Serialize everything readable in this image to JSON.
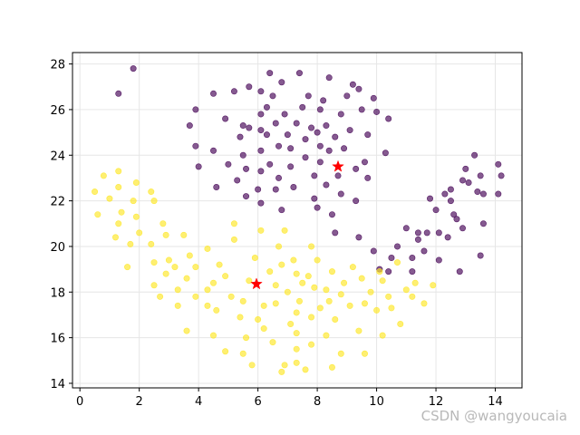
{
  "watermark": "CSDN @wangyoucaia",
  "chart_data": {
    "type": "scatter",
    "title": "",
    "xlabel": "",
    "ylabel": "",
    "xlim": [
      -0.25,
      14.9
    ],
    "ylim": [
      13.8,
      28.5
    ],
    "xticks": [
      0,
      2,
      4,
      6,
      8,
      10,
      12,
      14
    ],
    "yticks": [
      14,
      16,
      18,
      20,
      22,
      24,
      26,
      28
    ],
    "grid": true,
    "colors": {
      "purple": "#440154",
      "yellow": "#fde725",
      "centroid": "#ff0000"
    },
    "series": [
      {
        "color": "#440154",
        "points": [
          [
            1.3,
            26.7
          ],
          [
            1.8,
            27.8
          ],
          [
            3.7,
            25.3
          ],
          [
            3.9,
            26.0
          ],
          [
            3.9,
            24.4
          ],
          [
            4.0,
            23.5
          ],
          [
            4.5,
            26.7
          ],
          [
            4.5,
            24.2
          ],
          [
            4.6,
            22.6
          ],
          [
            4.9,
            25.6
          ],
          [
            5.0,
            23.6
          ],
          [
            5.2,
            26.8
          ],
          [
            5.3,
            22.9
          ],
          [
            5.4,
            24.8
          ],
          [
            5.5,
            25.3
          ],
          [
            5.6,
            23.4
          ],
          [
            5.6,
            22.2
          ],
          [
            5.5,
            24.0
          ],
          [
            5.7,
            27.0
          ],
          [
            5.7,
            25.2
          ],
          [
            6.1,
            26.8
          ],
          [
            6.1,
            25.8
          ],
          [
            6.1,
            25.1
          ],
          [
            6.1,
            24.2
          ],
          [
            6.1,
            23.3
          ],
          [
            6.0,
            22.5
          ],
          [
            6.1,
            21.9
          ],
          [
            6.3,
            26.1
          ],
          [
            6.3,
            24.9
          ],
          [
            6.4,
            23.6
          ],
          [
            6.4,
            27.6
          ],
          [
            6.5,
            26.6
          ],
          [
            6.6,
            25.4
          ],
          [
            6.7,
            24.4
          ],
          [
            6.7,
            23.0
          ],
          [
            6.8,
            21.6
          ],
          [
            6.6,
            22.5
          ],
          [
            6.8,
            27.2
          ],
          [
            6.9,
            25.8
          ],
          [
            7.0,
            24.9
          ],
          [
            7.1,
            24.3
          ],
          [
            7.1,
            23.5
          ],
          [
            7.2,
            22.6
          ],
          [
            7.3,
            25.4
          ],
          [
            7.4,
            27.6
          ],
          [
            7.5,
            26.1
          ],
          [
            7.6,
            24.7
          ],
          [
            7.6,
            23.9
          ],
          [
            7.8,
            25.2
          ],
          [
            7.7,
            26.6
          ],
          [
            7.9,
            22.1
          ],
          [
            8.0,
            25.0
          ],
          [
            7.9,
            23.1
          ],
          [
            8.0,
            21.7
          ],
          [
            8.1,
            26.0
          ],
          [
            8.1,
            24.4
          ],
          [
            8.1,
            23.7
          ],
          [
            8.2,
            26.4
          ],
          [
            8.3,
            25.3
          ],
          [
            8.3,
            22.7
          ],
          [
            8.4,
            27.4
          ],
          [
            8.4,
            24.2
          ],
          [
            8.5,
            21.4
          ],
          [
            8.6,
            24.8
          ],
          [
            8.7,
            23.1
          ],
          [
            8.8,
            25.8
          ],
          [
            8.8,
            22.3
          ],
          [
            8.9,
            24.3
          ],
          [
            9.0,
            26.6
          ],
          [
            9.1,
            25.1
          ],
          [
            9.2,
            27.1
          ],
          [
            9.3,
            23.4
          ],
          [
            9.3,
            22.0
          ],
          [
            9.4,
            26.9
          ],
          [
            9.5,
            26.0
          ],
          [
            9.6,
            23.7
          ],
          [
            9.7,
            24.9
          ],
          [
            9.7,
            23.0
          ],
          [
            9.9,
            26.5
          ],
          [
            10.0,
            25.9
          ],
          [
            10.3,
            24.1
          ],
          [
            10.4,
            25.6
          ],
          [
            8.6,
            20.6
          ],
          [
            9.4,
            20.4
          ],
          [
            9.9,
            19.8
          ],
          [
            10.1,
            19.0
          ],
          [
            10.5,
            19.5
          ],
          [
            10.4,
            18.9
          ],
          [
            10.7,
            20.0
          ],
          [
            11.0,
            20.8
          ],
          [
            11.2,
            19.5
          ],
          [
            11.2,
            18.9
          ],
          [
            11.4,
            20.3
          ],
          [
            11.6,
            19.8
          ],
          [
            11.7,
            20.6
          ],
          [
            11.8,
            22.1
          ],
          [
            12.0,
            21.6
          ],
          [
            12.1,
            20.6
          ],
          [
            12.1,
            19.4
          ],
          [
            12.3,
            22.3
          ],
          [
            12.4,
            20.4
          ],
          [
            12.5,
            22.0
          ],
          [
            12.6,
            21.4
          ],
          [
            12.5,
            22.5
          ],
          [
            12.7,
            21.2
          ],
          [
            12.8,
            18.9
          ],
          [
            12.9,
            22.9
          ],
          [
            12.9,
            20.8
          ],
          [
            13.0,
            23.4
          ],
          [
            13.1,
            22.8
          ],
          [
            13.3,
            24.0
          ],
          [
            13.4,
            22.4
          ],
          [
            13.5,
            23.1
          ],
          [
            13.6,
            21.0
          ],
          [
            13.6,
            22.3
          ],
          [
            13.5,
            19.6
          ],
          [
            14.1,
            23.6
          ],
          [
            14.1,
            22.3
          ],
          [
            14.2,
            23.1
          ],
          [
            11.4,
            20.6
          ]
        ]
      },
      {
        "color": "#fde725",
        "points": [
          [
            0.5,
            22.4
          ],
          [
            0.6,
            21.4
          ],
          [
            0.8,
            23.1
          ],
          [
            1.0,
            22.1
          ],
          [
            1.2,
            20.4
          ],
          [
            1.3,
            23.3
          ],
          [
            1.3,
            22.6
          ],
          [
            1.3,
            21.0
          ],
          [
            1.4,
            21.5
          ],
          [
            1.6,
            19.1
          ],
          [
            1.7,
            20.1
          ],
          [
            1.8,
            22.0
          ],
          [
            1.9,
            22.8
          ],
          [
            1.9,
            21.3
          ],
          [
            2.0,
            20.6
          ],
          [
            2.4,
            22.4
          ],
          [
            2.5,
            22.0
          ],
          [
            2.4,
            20.1
          ],
          [
            2.5,
            19.3
          ],
          [
            2.5,
            18.3
          ],
          [
            2.7,
            17.8
          ],
          [
            2.8,
            21.0
          ],
          [
            2.9,
            18.8
          ],
          [
            2.9,
            20.5
          ],
          [
            3.0,
            19.4
          ],
          [
            3.2,
            19.1
          ],
          [
            3.3,
            18.1
          ],
          [
            3.3,
            17.4
          ],
          [
            3.5,
            20.5
          ],
          [
            3.6,
            16.3
          ],
          [
            3.6,
            18.6
          ],
          [
            3.7,
            19.6
          ],
          [
            3.9,
            19.1
          ],
          [
            3.9,
            17.8
          ],
          [
            4.3,
            18.1
          ],
          [
            4.3,
            17.4
          ],
          [
            4.3,
            19.9
          ],
          [
            4.5,
            16.1
          ],
          [
            4.5,
            18.4
          ],
          [
            4.7,
            19.2
          ],
          [
            4.9,
            18.7
          ],
          [
            5.1,
            17.8
          ],
          [
            5.2,
            21.0
          ],
          [
            5.2,
            20.3
          ],
          [
            5.4,
            16.9
          ],
          [
            5.5,
            17.6
          ],
          [
            5.5,
            15.3
          ],
          [
            5.6,
            16.0
          ],
          [
            5.7,
            18.5
          ],
          [
            5.8,
            14.8
          ],
          [
            5.9,
            19.5
          ],
          [
            6.0,
            16.8
          ],
          [
            6.1,
            20.7
          ],
          [
            6.2,
            17.4
          ],
          [
            6.2,
            16.4
          ],
          [
            6.4,
            18.9
          ],
          [
            6.5,
            15.8
          ],
          [
            6.6,
            18.3
          ],
          [
            6.6,
            17.5
          ],
          [
            6.7,
            20.0
          ],
          [
            6.8,
            14.5
          ],
          [
            6.8,
            19.2
          ],
          [
            6.9,
            20.7
          ],
          [
            7.0,
            18.0
          ],
          [
            7.1,
            16.6
          ],
          [
            7.2,
            19.4
          ],
          [
            7.3,
            18.8
          ],
          [
            7.3,
            17.1
          ],
          [
            7.3,
            16.2
          ],
          [
            7.3,
            15.5
          ],
          [
            7.3,
            14.9
          ],
          [
            7.4,
            17.6
          ],
          [
            7.5,
            18.4
          ],
          [
            7.6,
            14.6
          ],
          [
            7.7,
            18.7
          ],
          [
            7.9,
            18.2
          ],
          [
            7.8,
            16.9
          ],
          [
            7.8,
            15.7
          ],
          [
            7.8,
            20.0
          ],
          [
            8.0,
            19.4
          ],
          [
            8.1,
            17.3
          ],
          [
            8.3,
            18.1
          ],
          [
            8.3,
            16.1
          ],
          [
            8.4,
            17.6
          ],
          [
            8.5,
            18.9
          ],
          [
            8.5,
            14.7
          ],
          [
            8.6,
            16.8
          ],
          [
            8.8,
            17.9
          ],
          [
            8.8,
            15.3
          ],
          [
            8.9,
            18.4
          ],
          [
            9.1,
            17.4
          ],
          [
            9.2,
            19.1
          ],
          [
            9.4,
            16.3
          ],
          [
            9.5,
            18.6
          ],
          [
            9.6,
            17.5
          ],
          [
            9.8,
            18.0
          ],
          [
            10.0,
            17.2
          ],
          [
            10.1,
            18.9
          ],
          [
            10.2,
            16.1
          ],
          [
            10.2,
            18.5
          ],
          [
            10.4,
            17.8
          ],
          [
            10.5,
            17.3
          ],
          [
            10.7,
            19.3
          ],
          [
            10.8,
            16.6
          ],
          [
            11.0,
            18.1
          ],
          [
            11.2,
            17.8
          ],
          [
            11.3,
            18.4
          ],
          [
            11.6,
            17.5
          ],
          [
            11.9,
            18.3
          ],
          [
            9.6,
            15.3
          ],
          [
            4.9,
            15.4
          ],
          [
            4.6,
            17.2
          ],
          [
            6.9,
            14.8
          ]
        ]
      }
    ],
    "centroids": [
      {
        "x": 8.7,
        "y": 23.5
      },
      {
        "x": 5.95,
        "y": 18.35
      }
    ]
  }
}
